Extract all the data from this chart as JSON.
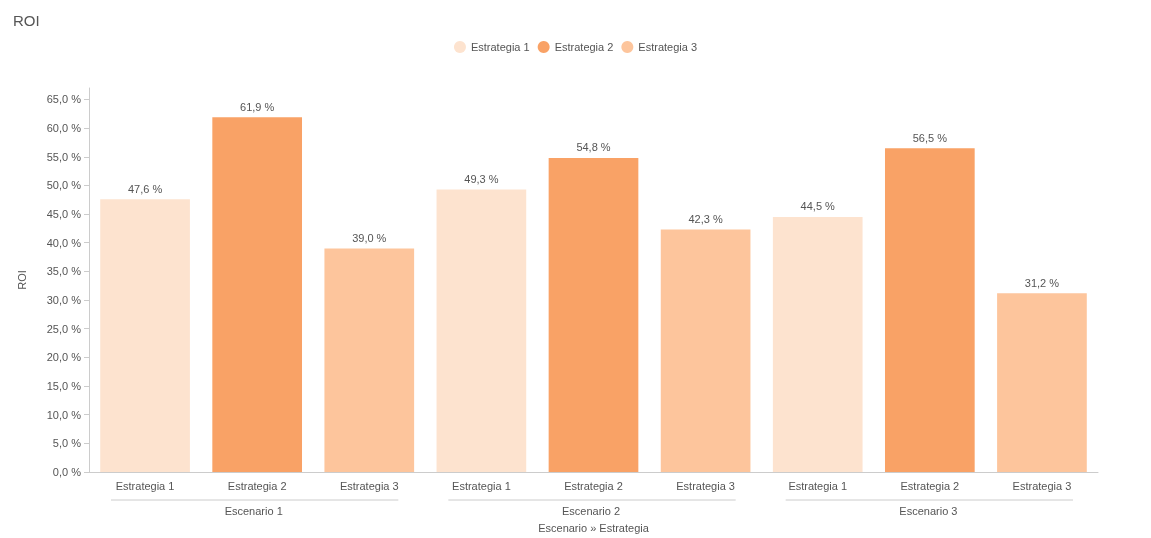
{
  "chart_data": {
    "type": "bar",
    "title": "ROI",
    "xlabel": "Escenario » Estrategia",
    "ylabel": "ROI",
    "categories": [
      "Estrategia 1",
      "Estrategia 2",
      "Estrategia 3",
      "Estrategia 1",
      "Estrategia 2",
      "Estrategia 3",
      "Estrategia 1",
      "Estrategia 2",
      "Estrategia 3"
    ],
    "annotations": [
      "Escenario 1",
      "Escenario 2",
      "Escenario 3"
    ],
    "series": [
      {
        "name": "Estrategia 1",
        "color": "#fde3cf",
        "values": [
          47.6,
          null,
          null,
          49.3,
          null,
          null,
          44.5,
          null,
          null
        ],
        "value_labels": [
          "47,6 %",
          null,
          null,
          "49,3 %",
          null,
          null,
          "44,5 %",
          null,
          null
        ]
      },
      {
        "name": "Estrategia 2",
        "color": "#f9a266",
        "values": [
          null,
          61.9,
          null,
          null,
          54.8,
          null,
          null,
          56.5,
          null
        ],
        "value_labels": [
          null,
          "61,9 %",
          null,
          null,
          "54,8 %",
          null,
          null,
          "56,5 %",
          null
        ]
      },
      {
        "name": "Estrategia 3",
        "color": "#fdc59c",
        "values": [
          null,
          null,
          39.0,
          null,
          null,
          42.3,
          null,
          null,
          31.2
        ],
        "value_labels": [
          null,
          null,
          "39,0 %",
          null,
          null,
          "42,3 %",
          null,
          null,
          "31,2 %"
        ]
      }
    ],
    "ylim": [
      0,
      67
    ],
    "yticks": [
      {
        "value": 0,
        "label": "0,0 %"
      },
      {
        "value": 5,
        "label": "5,0 %"
      },
      {
        "value": 10,
        "label": "10,0 %"
      },
      {
        "value": 15,
        "label": "15,0 %"
      },
      {
        "value": 20,
        "label": "20,0 %"
      },
      {
        "value": 25,
        "label": "25,0 %"
      },
      {
        "value": 30,
        "label": "30,0 %"
      },
      {
        "value": 35,
        "label": "35,0 %"
      },
      {
        "value": 40,
        "label": "40,0 %"
      },
      {
        "value": 45,
        "label": "45,0 %"
      },
      {
        "value": 50,
        "label": "50,0 %"
      },
      {
        "value": 55,
        "label": "55,0 %"
      },
      {
        "value": 60,
        "label": "60,0 %"
      },
      {
        "value": 65,
        "label": "65,0 %"
      }
    ],
    "grid": false,
    "legend": "top"
  }
}
